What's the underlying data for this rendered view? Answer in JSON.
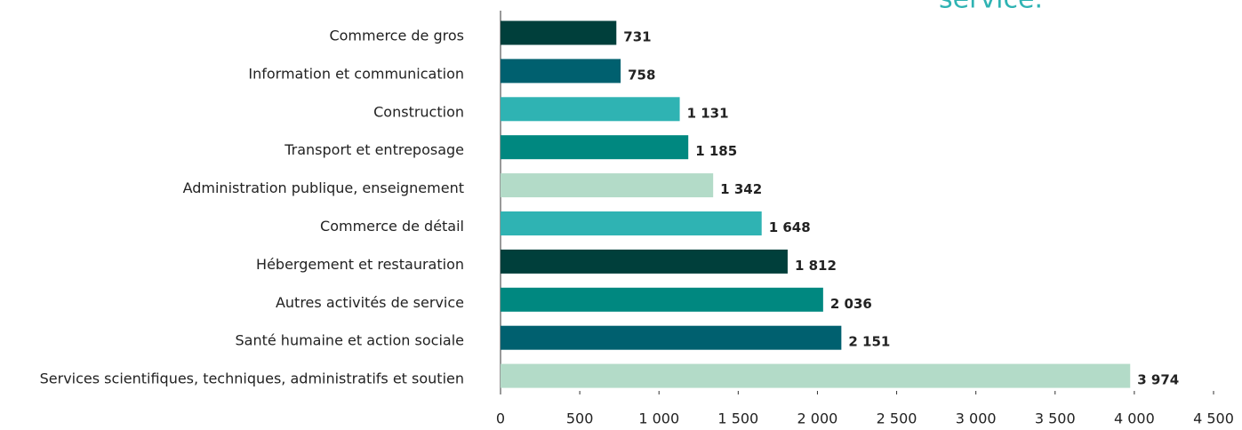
{
  "chart_data": {
    "type": "bar",
    "orientation": "horizontal",
    "annotation": "service.",
    "categories": [
      "Commerce de gros",
      "Information et communication",
      "Construction",
      "Transport et entreposage",
      "Administration publique, enseignement",
      "Commerce de détail",
      "Hébergement et restauration",
      "Autres activités de service",
      "Santé humaine et action sociale",
      "Services scientifiques, techniques, administratifs et soutien"
    ],
    "values": [
      731,
      758,
      1131,
      1185,
      1342,
      1648,
      1812,
      2036,
      2151,
      3974
    ],
    "value_labels": [
      "731",
      "758",
      "1 131",
      "1 185",
      "1 342",
      "1 648",
      "1 812",
      "2 036",
      "2 151",
      "3 974"
    ],
    "colors": [
      "#003f3b",
      "#00606f",
      "#2fb3b3",
      "#008880",
      "#b3dbc8",
      "#2fb3b3",
      "#003f3b",
      "#008880",
      "#00606f",
      "#b3dbc8"
    ],
    "xlim": [
      0,
      4500
    ],
    "xticks": [
      0,
      500,
      {
        "value": 1000,
        "label": "1 000"
      },
      {
        "value": 1500,
        "label": "1 500"
      },
      {
        "value": 2000,
        "label": "2 000"
      },
      {
        "value": 2500,
        "label": "2 500"
      },
      {
        "value": 3000,
        "label": "3 000"
      },
      {
        "value": 3500,
        "label": "3 500"
      },
      {
        "value": 4000,
        "label": "4 000"
      },
      {
        "value": 4500,
        "label": "4 500"
      }
    ],
    "grid": false
  }
}
